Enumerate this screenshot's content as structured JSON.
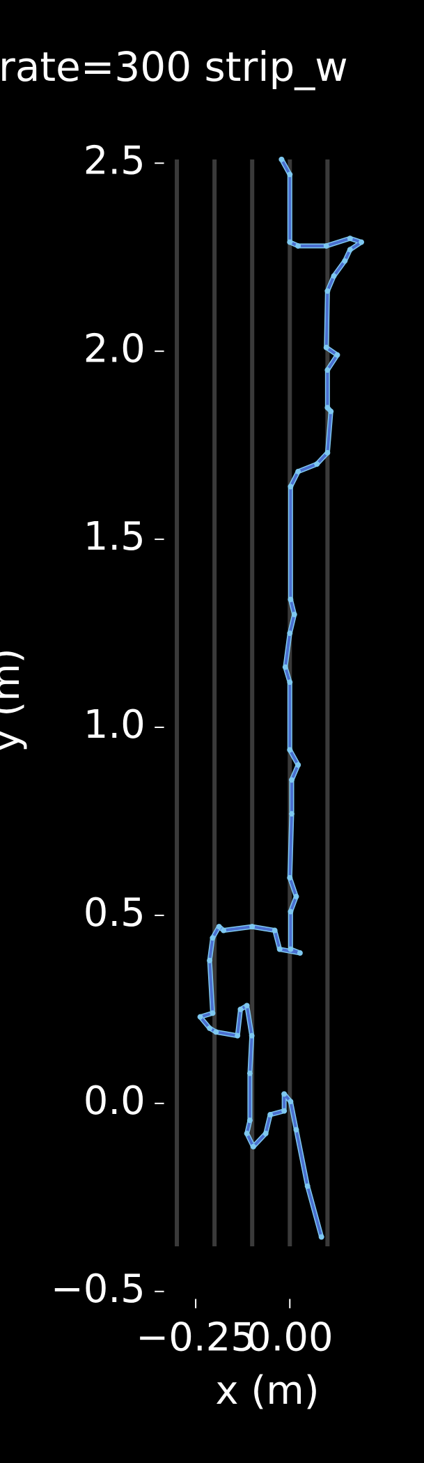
{
  "chart_data": {
    "type": "line",
    "title": "rate=300 strip_w",
    "x_label": "x (m)",
    "y_label": "y (m)",
    "xlim": [
      -0.325,
      0.195
    ],
    "ylim": [
      -0.5,
      2.5
    ],
    "xticks": [
      {
        "value": -0.25,
        "label": "−0.25"
      },
      {
        "value": 0,
        "label": "0.00"
      }
    ],
    "yticks": [
      {
        "value": -0.5,
        "label": "−0.5"
      },
      {
        "value": 0,
        "label": "0.0"
      },
      {
        "value": 0.5,
        "label": "0.5"
      },
      {
        "value": 1,
        "label": "1.0"
      },
      {
        "value": 1.5,
        "label": "1.5"
      },
      {
        "value": 2,
        "label": "2.0"
      },
      {
        "value": 2.5,
        "label": "2.5"
      }
    ],
    "strips": {
      "x": [
        -0.3,
        -0.2,
        -0.1,
        0,
        0.1
      ],
      "ylim": [
        -0.38,
        2.51
      ],
      "color": "#3a3a3a"
    },
    "series": [
      {
        "color": "#4a6fd0",
        "marker_color": "#7ec8f0",
        "x": [
          -0.022,
          0,
          0,
          0.022,
          0.097,
          0.16,
          0.19,
          0.16,
          0.146,
          0.117,
          0.1,
          0.097,
          0.126,
          0.1,
          0.1,
          0.109,
          0.1,
          0.072,
          0.022,
          0.002,
          0.002,
          0.012,
          0,
          -0.012,
          0,
          0,
          0.022,
          0.005,
          0.005,
          0,
          0.017,
          0.002,
          0.002,
          0.027,
          -0.027,
          -0.04,
          -0.1,
          -0.176,
          -0.188,
          -0.205,
          -0.213,
          -0.205,
          -0.238,
          -0.213,
          -0.196,
          -0.139,
          -0.131,
          -0.114,
          -0.101,
          -0.106,
          -0.106,
          -0.114,
          -0.097,
          -0.064,
          -0.052,
          -0.015,
          -0.015,
          0.002,
          0.017,
          0.047,
          0.084
        ],
        "y": [
          2.51,
          2.47,
          2.29,
          2.28,
          2.28,
          2.3,
          2.29,
          2.27,
          2.24,
          2.2,
          2.16,
          2.01,
          1.99,
          1.95,
          1.85,
          1.84,
          1.73,
          1.7,
          1.68,
          1.64,
          1.34,
          1.3,
          1.25,
          1.16,
          1.12,
          0.94,
          0.9,
          0.86,
          0.77,
          0.6,
          0.55,
          0.51,
          0.41,
          0.4,
          0.41,
          0.46,
          0.47,
          0.46,
          0.47,
          0.44,
          0.38,
          0.24,
          0.23,
          0.2,
          0.19,
          0.18,
          0.25,
          0.26,
          0.18,
          0.08,
          -0.045,
          -0.08,
          -0.115,
          -0.08,
          -0.03,
          -0.02,
          0.025,
          0.005,
          -0.07,
          -0.22,
          -0.355
        ]
      }
    ]
  }
}
